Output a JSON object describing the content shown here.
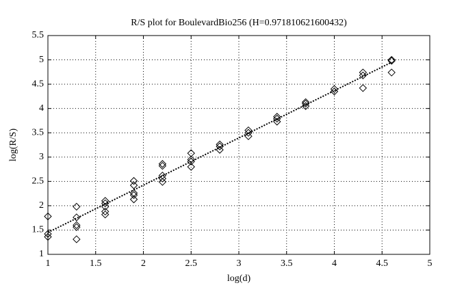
{
  "chart_data": {
    "type": "scatter",
    "title": "R/S plot for BoulevardBio256 (H=0.971810621600432)",
    "x_label": "log(d)",
    "y_label": "log(R/S)",
    "xlim": [
      1,
      5
    ],
    "ylim": [
      1,
      5.5
    ],
    "xticks": [
      1,
      1.5,
      2,
      2.5,
      3,
      3.5,
      4,
      4.5,
      5
    ],
    "yticks": [
      1,
      1.5,
      2,
      2.5,
      3,
      3.5,
      4,
      4.5,
      5,
      5.5
    ],
    "grid": true,
    "series": [
      {
        "color": "#000000",
        "marker": "diamond",
        "x": [
          1,
          1,
          1,
          1.3,
          1.3,
          1.3,
          1.3,
          1.3,
          1.6,
          1.6,
          1.6,
          1.6,
          1.6,
          1.9,
          1.9,
          1.9,
          1.9,
          1.9,
          2.2,
          2.2,
          2.2,
          2.2,
          2.2,
          2.5,
          2.5,
          2.5,
          2.5,
          2.8,
          2.8,
          2.8,
          3.1,
          3.1,
          3.1,
          3.4,
          3.4,
          3.4,
          3.7,
          3.7,
          3.7,
          4,
          4,
          4.3,
          4.3,
          4.3,
          4.6,
          4.6,
          4.6
        ],
        "values": [
          1.78,
          1.42,
          1.36,
          1.98,
          1.76,
          1.6,
          1.56,
          1.31,
          2.1,
          2.05,
          1.98,
          1.88,
          1.82,
          2.51,
          2.42,
          2.26,
          2.22,
          2.13,
          2.86,
          2.82,
          2.62,
          2.56,
          2.49,
          3.08,
          2.95,
          2.91,
          2.8,
          3.26,
          3.22,
          3.15,
          3.55,
          3.5,
          3.43,
          3.83,
          3.79,
          3.73,
          4.13,
          4.1,
          4.05,
          4.4,
          4.35,
          4.74,
          4.68,
          4.42,
          5,
          4.98,
          4.74
        ]
      },
      {
        "color": "#000000",
        "style": "dotted",
        "x": [
          1,
          4.6
        ],
        "values": [
          1.45,
          4.95
        ]
      }
    ]
  }
}
